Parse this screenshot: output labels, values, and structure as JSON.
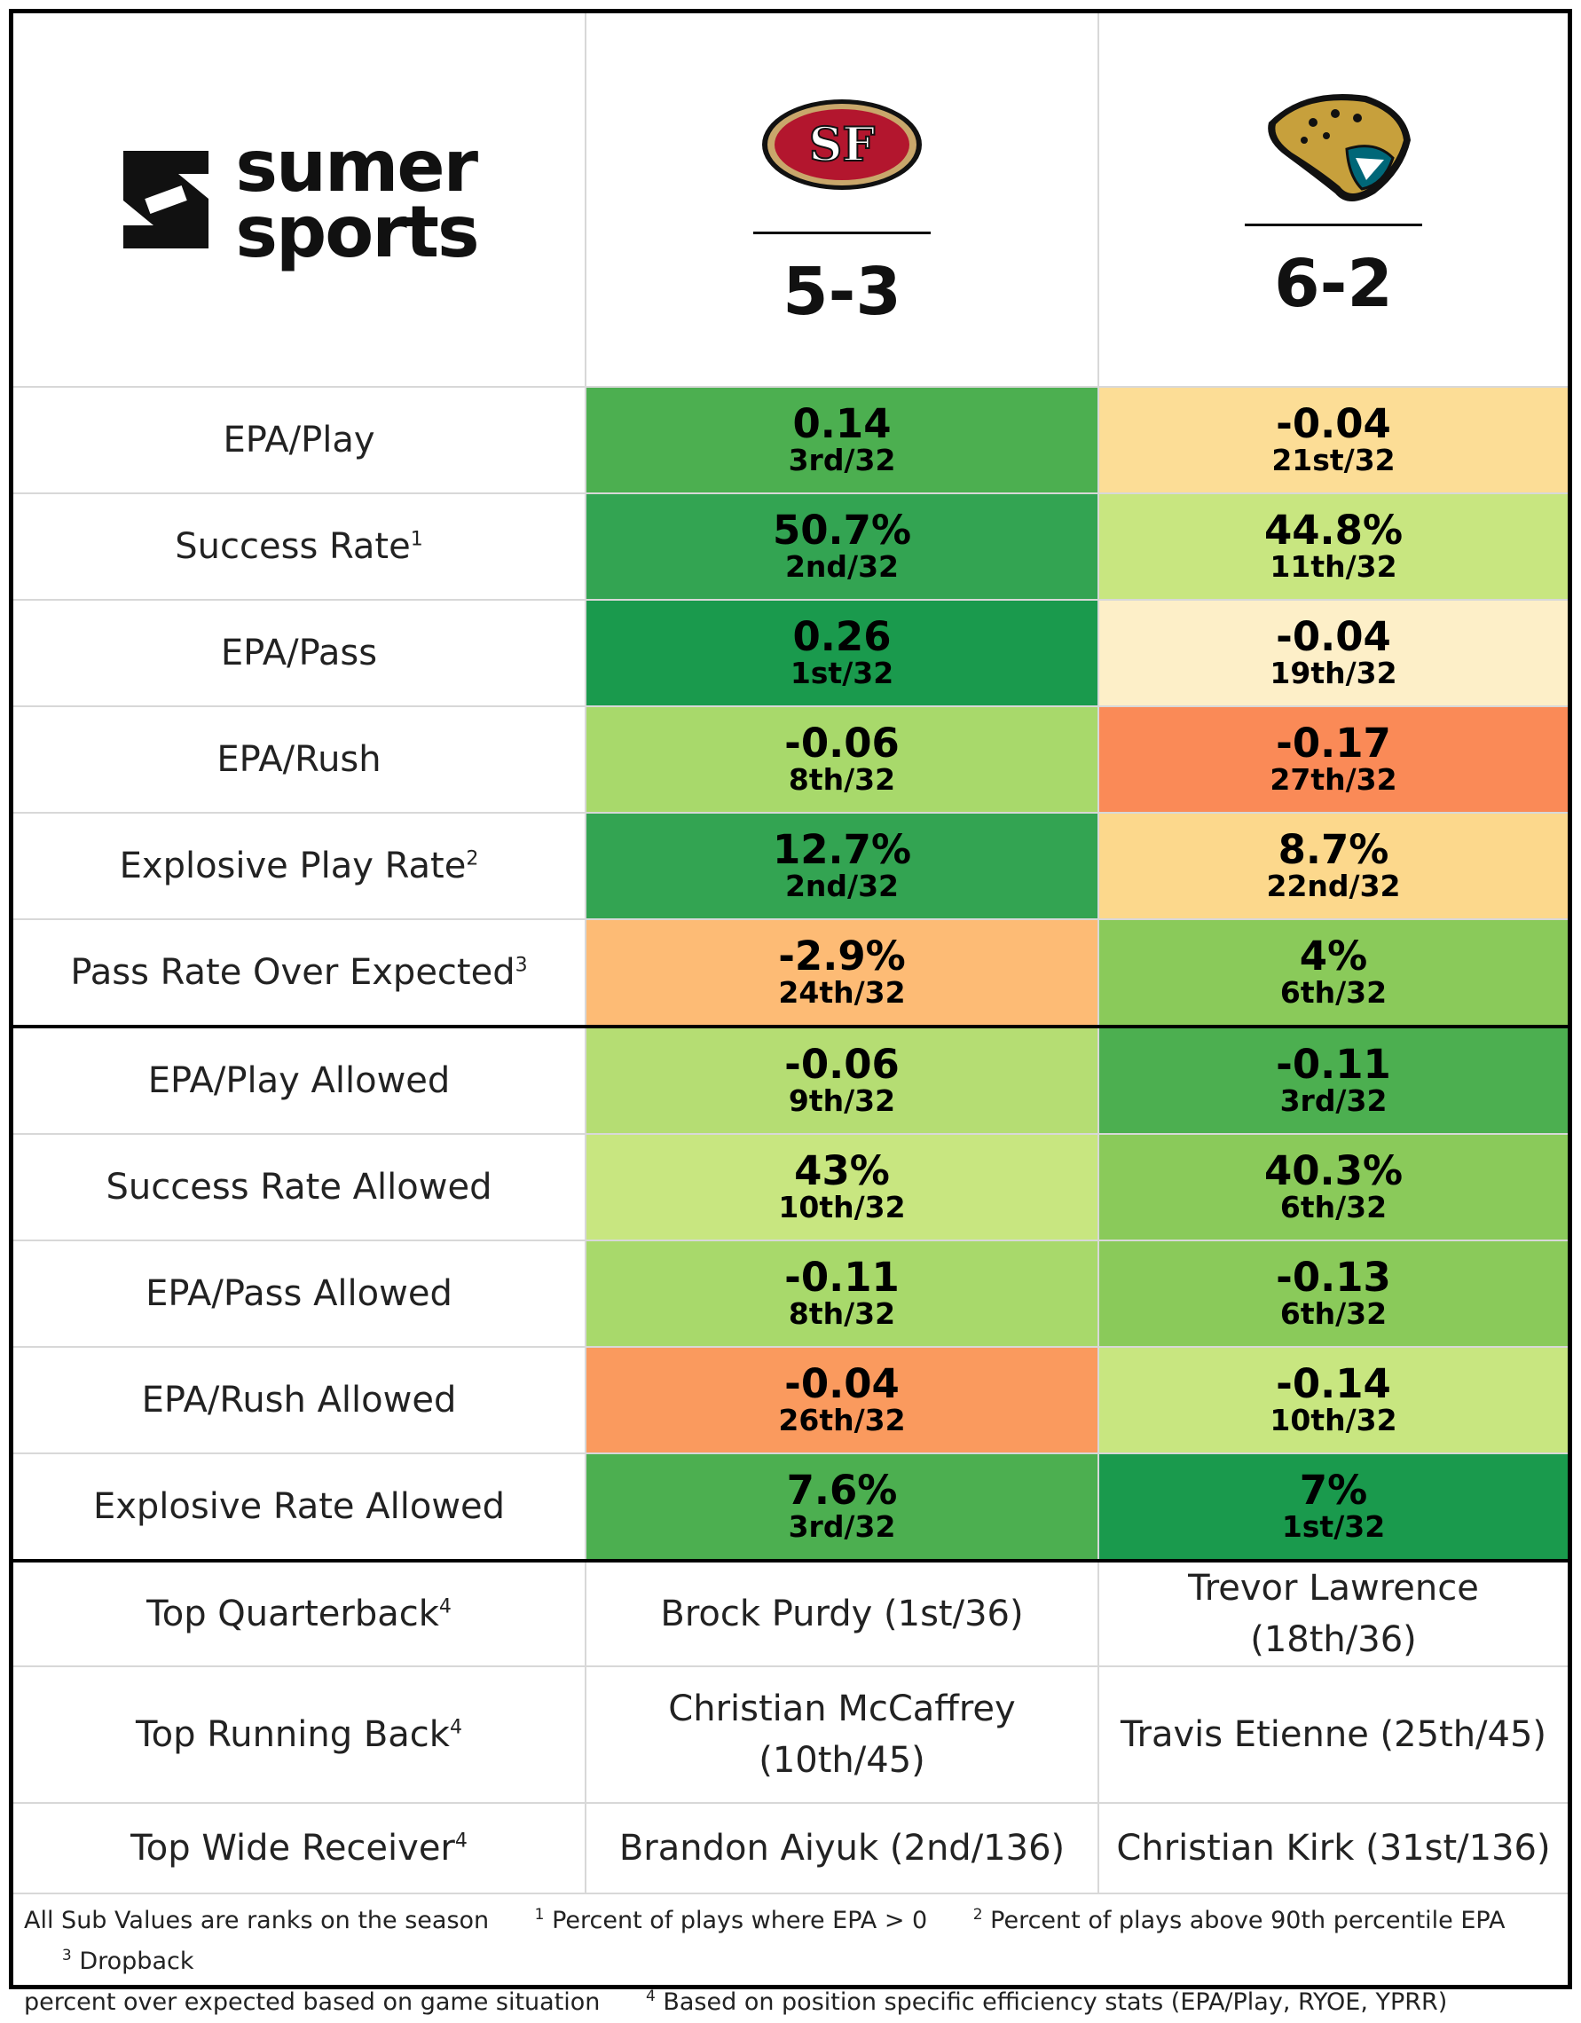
{
  "brand": {
    "line1": "sumer",
    "line2": "sports"
  },
  "teams": [
    {
      "logo": "49ers-sf-logo-icon",
      "record": "5-3"
    },
    {
      "logo": "jaguars-head-logo-icon",
      "record": "6-2"
    }
  ],
  "offense": [
    {
      "label": "EPA/Play",
      "sup": "",
      "t1": {
        "value": "0.14",
        "rank": "3rd/32",
        "color": "#4CAF50"
      },
      "t2": {
        "value": "-0.04",
        "rank": "21st/32",
        "color": "#FCDD96"
      }
    },
    {
      "label": "Success Rate",
      "sup": "1",
      "t1": {
        "value": "50.7%",
        "rank": "2nd/32",
        "color": "#33A452"
      },
      "t2": {
        "value": "44.8%",
        "rank": "11th/32",
        "color": "#C8E680"
      }
    },
    {
      "label": "EPA/Pass",
      "sup": "",
      "t1": {
        "value": "0.26",
        "rank": "1st/32",
        "color": "#1A9A4D"
      },
      "t2": {
        "value": "-0.04",
        "rank": "19th/32",
        "color": "#FDEFC8"
      }
    },
    {
      "label": "EPA/Rush",
      "sup": "",
      "t1": {
        "value": "-0.06",
        "rank": "8th/32",
        "color": "#A8D96B"
      },
      "t2": {
        "value": "-0.17",
        "rank": "27th/32",
        "color": "#FA8A57"
      }
    },
    {
      "label": "Explosive Play Rate",
      "sup": "2",
      "t1": {
        "value": "12.7%",
        "rank": "2nd/32",
        "color": "#33A452"
      },
      "t2": {
        "value": "8.7%",
        "rank": "22nd/32",
        "color": "#FCD88C"
      }
    },
    {
      "label": "Pass Rate Over Expected",
      "sup": "3",
      "t1": {
        "value": "-2.9%",
        "rank": "24th/32",
        "color": "#FDBB75"
      },
      "t2": {
        "value": "4%",
        "rank": "6th/32",
        "color": "#8ACA5A"
      }
    }
  ],
  "defense": [
    {
      "label": "EPA/Play Allowed",
      "sup": "",
      "t1": {
        "value": "-0.06",
        "rank": "9th/32",
        "color": "#B5DD73"
      },
      "t2": {
        "value": "-0.11",
        "rank": "3rd/32",
        "color": "#4CAF50"
      }
    },
    {
      "label": "Success Rate Allowed",
      "sup": "",
      "t1": {
        "value": "43%",
        "rank": "10th/32",
        "color": "#C8E680"
      },
      "t2": {
        "value": "40.3%",
        "rank": "6th/32",
        "color": "#8ACA5A"
      }
    },
    {
      "label": "EPA/Pass Allowed",
      "sup": "",
      "t1": {
        "value": "-0.11",
        "rank": "8th/32",
        "color": "#A8D96B"
      },
      "t2": {
        "value": "-0.13",
        "rank": "6th/32",
        "color": "#8ACA5A"
      }
    },
    {
      "label": "EPA/Rush Allowed",
      "sup": "",
      "t1": {
        "value": "-0.04",
        "rank": "26th/32",
        "color": "#FA9A5E"
      },
      "t2": {
        "value": "-0.14",
        "rank": "10th/32",
        "color": "#C8E680"
      }
    },
    {
      "label": "Explosive Rate Allowed",
      "sup": "",
      "t1": {
        "value": "7.6%",
        "rank": "3rd/32",
        "color": "#4CAF50"
      },
      "t2": {
        "value": "7%",
        "rank": "1st/32",
        "color": "#1A9A4D"
      }
    }
  ],
  "players": [
    {
      "label": "Top Quarterback",
      "sup": "4",
      "t1": "Brock Purdy (1st/36)",
      "t2": "Trevor Lawrence (18th/36)"
    },
    {
      "label": "Top Running Back",
      "sup": "4",
      "t1": "Christian McCaffrey (10th/45)",
      "t2": "Travis Etienne (25th/45)"
    },
    {
      "label": "Top Wide Receiver",
      "sup": "4",
      "t1": "Brandon Aiyuk (2nd/136)",
      "t2": "Christian Kirk (31st/136)"
    }
  ],
  "footer": {
    "note": "All Sub Values are ranks on the season",
    "fn1": "Percent of plays where EPA > 0",
    "fn2": "Percent of plays above 90th percentile EPA",
    "fn3a": "Dropback",
    "fn3b": "percent over expected based on game situation",
    "fn4": "Based on position specific efficiency stats (EPA/Play, RYOE, YPRR)"
  }
}
